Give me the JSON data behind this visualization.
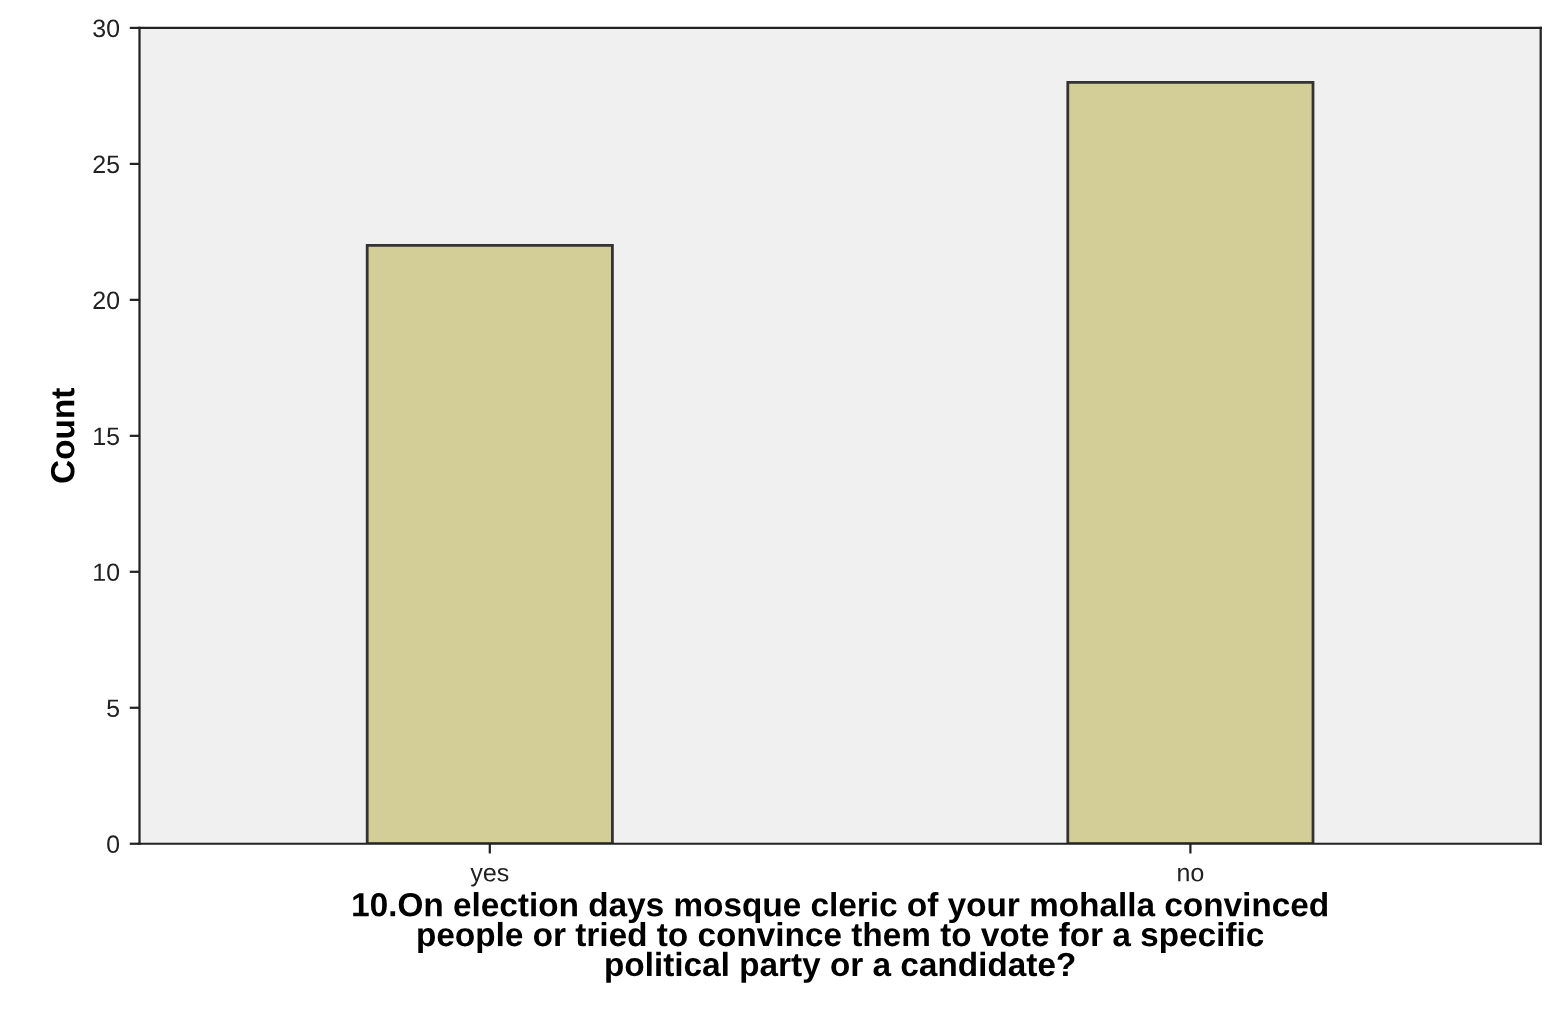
{
  "chart_data": {
    "type": "bar",
    "categories": [
      "yes",
      "no"
    ],
    "values": [
      22,
      28
    ],
    "color": "#d3ce97",
    "xlabel": "10.On election days mosque cleric of your mohalla convinced\npeople or tried to convince them to vote for a specific\npolitical party or a candidate?",
    "ylabel": "Count",
    "ylim": [
      0,
      30
    ],
    "yticks": [
      0,
      5,
      10,
      15,
      20,
      25,
      30
    ],
    "grid": false,
    "legend": false
  }
}
